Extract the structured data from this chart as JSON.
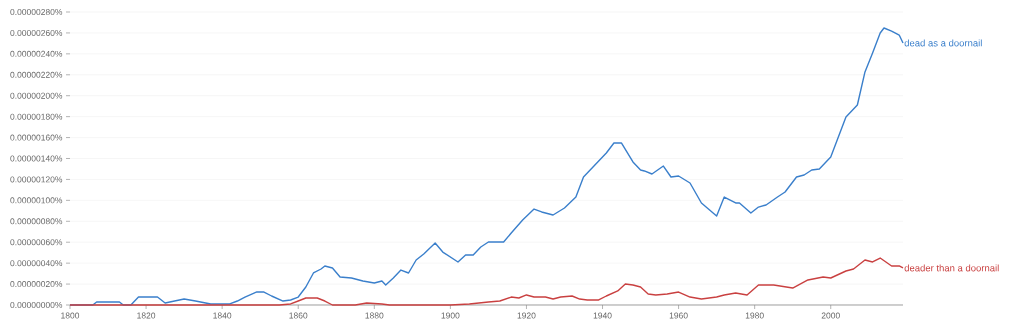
{
  "chart_data": {
    "type": "line",
    "grid": "y",
    "xlim": [
      1800,
      2019
    ],
    "ylim": [
      0,
      2.8e-06
    ],
    "xticks": [
      1800,
      1820,
      1840,
      1860,
      1880,
      1900,
      1920,
      1940,
      1960,
      1980,
      2000
    ],
    "yticks": [
      {
        "value": 0,
        "label": "0.00000000%"
      },
      {
        "value": 2e-07,
        "label": "0.00000020%"
      },
      {
        "value": 4e-07,
        "label": "0.00000040%"
      },
      {
        "value": 6e-07,
        "label": "0.00000060%"
      },
      {
        "value": 8e-07,
        "label": "0.00000080%"
      },
      {
        "value": 1e-06,
        "label": "0.00000100%"
      },
      {
        "value": 1.2e-06,
        "label": "0.00000120%"
      },
      {
        "value": 1.4e-06,
        "label": "0.00000140%"
      },
      {
        "value": 1.6e-06,
        "label": "0.00000160%"
      },
      {
        "value": 1.8e-06,
        "label": "0.00000180%"
      },
      {
        "value": 2e-06,
        "label": "0.00000200%"
      },
      {
        "value": 2.2e-06,
        "label": "0.00000220%"
      },
      {
        "value": 2.4e-06,
        "label": "0.00000240%"
      },
      {
        "value": 2.6e-06,
        "label": "0.00000260%"
      },
      {
        "value": 2.8e-06,
        "label": "0.00000280%"
      }
    ],
    "series": [
      {
        "name": "dead as a doornail",
        "color": "#3a7fcb",
        "x": [
          1800,
          1806,
          1807,
          1813,
          1814,
          1816,
          1818,
          1823,
          1825,
          1830,
          1833,
          1837,
          1842,
          1844,
          1846,
          1849,
          1851,
          1853,
          1856,
          1858,
          1860,
          1862,
          1864,
          1866,
          1867,
          1869,
          1871,
          1874,
          1877,
          1880,
          1882,
          1883,
          1885,
          1887,
          1889,
          1891,
          1893,
          1896,
          1898,
          1902,
          1904,
          1906,
          1908,
          1910,
          1914,
          1916,
          1919,
          1922,
          1924,
          1927,
          1930,
          1933,
          1935,
          1938,
          1941,
          1943,
          1945,
          1948,
          1950,
          1951,
          1953,
          1956,
          1958,
          1960,
          1963,
          1966,
          1970,
          1972,
          1975,
          1976,
          1979,
          1981,
          1983,
          1986,
          1988,
          1991,
          1993,
          1995,
          1997,
          2000,
          2002,
          2004,
          2007,
          2009,
          2011,
          2013,
          2014,
          2016,
          2018,
          2019
        ],
        "values": [
          0,
          0,
          2.9e-08,
          2.9e-08,
          0,
          0,
          7.6e-08,
          7.6e-08,
          1.9e-08,
          5.7e-08,
          3.8e-08,
          1e-08,
          1e-08,
          3.8e-08,
          7.6e-08,
          1.24e-07,
          1.24e-07,
          8.6e-08,
          3.8e-08,
          4.8e-08,
          7.6e-08,
          1.72e-07,
          3.06e-07,
          3.44e-07,
          3.73e-07,
          3.54e-07,
          2.68e-07,
          2.58e-07,
          2.29e-07,
          2.1e-07,
          2.29e-07,
          1.91e-07,
          2.58e-07,
          3.34e-07,
          3.06e-07,
          4.3e-07,
          4.87e-07,
          5.92e-07,
          5.06e-07,
          4.11e-07,
          4.78e-07,
          4.78e-07,
          5.54e-07,
          6.02e-07,
          6.02e-07,
          6.88e-07,
          8.12e-07,
          9.17e-07,
          8.89e-07,
          8.6e-07,
          9.27e-07,
          1.032e-06,
          1.223e-06,
          1.338e-06,
          1.453e-06,
          1.548e-06,
          1.548e-06,
          1.367e-06,
          1.29e-06,
          1.281e-06,
          1.252e-06,
          1.328e-06,
          1.223e-06,
          1.233e-06,
          1.166e-06,
          9.75e-07,
          8.5e-07,
          1.032e-06,
          9.75e-07,
          9.75e-07,
          8.79e-07,
          9.36e-07,
          9.56e-07,
          1.032e-06,
          1.08e-06,
          1.223e-06,
          1.242e-06,
          1.29e-06,
          1.3e-06,
          1.414e-06,
          1.605e-06,
          1.797e-06,
          1.911e-06,
          2.227e-06,
          2.408e-06,
          2.599e-06,
          2.647e-06,
          2.618e-06,
          2.58e-06,
          2.504e-06
        ]
      },
      {
        "name": "deader than a doornail",
        "color": "#c94040",
        "x": [
          1800,
          1855,
          1858,
          1860,
          1862,
          1865,
          1867,
          1869,
          1875,
          1878,
          1882,
          1884,
          1900,
          1905,
          1910,
          1913,
          1916,
          1918,
          1920,
          1922,
          1925,
          1927,
          1929,
          1932,
          1934,
          1936,
          1939,
          1941,
          1944,
          1946,
          1948,
          1950,
          1952,
          1954,
          1957,
          1960,
          1963,
          1966,
          1968,
          1970,
          1972,
          1975,
          1978,
          1981,
          1985,
          1990,
          1994,
          1998,
          2000,
          2004,
          2006,
          2009,
          2011,
          2013,
          2016,
          2018,
          2019
        ],
        "values": [
          0,
          0,
          1e-08,
          3.8e-08,
          6.7e-08,
          6.7e-08,
          3.8e-08,
          0,
          0,
          1.9e-08,
          1e-08,
          0,
          0,
          1e-08,
          2.9e-08,
          3.8e-08,
          7.6e-08,
          6.7e-08,
          9.6e-08,
          7.6e-08,
          7.6e-08,
          5.7e-08,
          7.6e-08,
          8.6e-08,
          5.7e-08,
          4.8e-08,
          4.8e-08,
          8.6e-08,
          1.34e-07,
          2.01e-07,
          1.91e-07,
          1.72e-07,
          1.05e-07,
          9.6e-08,
          1.05e-07,
          1.24e-07,
          7.6e-08,
          5.7e-08,
          6.7e-08,
          7.6e-08,
          9.6e-08,
          1.15e-07,
          9.6e-08,
          1.91e-07,
          1.91e-07,
          1.62e-07,
          2.39e-07,
          2.68e-07,
          2.58e-07,
          3.25e-07,
          3.44e-07,
          4.3e-07,
          4.11e-07,
          4.49e-07,
          3.73e-07,
          3.73e-07,
          3.54e-07
        ]
      }
    ]
  }
}
